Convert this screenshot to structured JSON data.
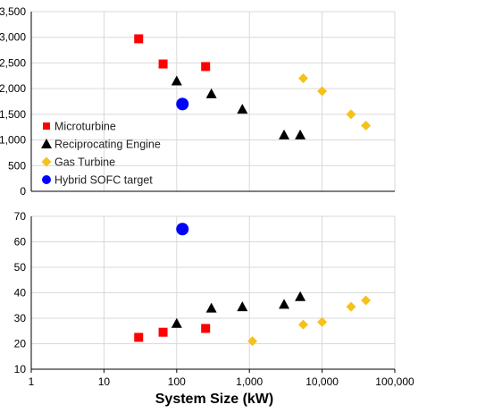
{
  "chart_data": [
    {
      "type": "scatter",
      "xscale": "log",
      "xlim": [
        1,
        100000
      ],
      "ylim": [
        0,
        3500
      ],
      "yticks": [
        "0",
        "500",
        "1,000",
        "1,500",
        "2,000",
        "2,500",
        "3,000",
        "3,500"
      ],
      "grid": true,
      "legend_position": "bottom-left",
      "series": [
        {
          "name": "Microturbine",
          "color": "#ff0000",
          "marker": "square",
          "points": [
            [
              30,
              2970
            ],
            [
              65,
              2480
            ],
            [
              250,
              2430
            ]
          ]
        },
        {
          "name": "Reciprocating Engine",
          "color": "#000000",
          "marker": "triangle",
          "points": [
            [
              100,
              2150
            ],
            [
              300,
              1900
            ],
            [
              800,
              1600
            ],
            [
              3000,
              1100
            ],
            [
              5000,
              1100
            ]
          ]
        },
        {
          "name": "Gas Turbine",
          "color": "#f5c21b",
          "marker": "diamond",
          "points": [
            [
              5500,
              2200
            ],
            [
              10000,
              1950
            ],
            [
              25000,
              1500
            ],
            [
              40000,
              1280
            ]
          ]
        },
        {
          "name": "Hybrid SOFC target",
          "color": "#0000ff",
          "marker": "circle",
          "points": [
            [
              120,
              1700
            ]
          ]
        }
      ]
    },
    {
      "type": "scatter",
      "xscale": "log",
      "xlim": [
        1,
        100000
      ],
      "ylim": [
        10,
        70
      ],
      "yticks": [
        "10",
        "20",
        "30",
        "40",
        "50",
        "60",
        "70"
      ],
      "xticks": [
        "1",
        "10",
        "100",
        "1,000",
        "10,000",
        "100,000"
      ],
      "xlabel": "System Size (kW)",
      "grid": true,
      "series": [
        {
          "name": "Microturbine",
          "color": "#ff0000",
          "marker": "square",
          "points": [
            [
              30,
              22.5
            ],
            [
              65,
              24.5
            ],
            [
              250,
              26
            ]
          ]
        },
        {
          "name": "Reciprocating Engine",
          "color": "#000000",
          "marker": "triangle",
          "points": [
            [
              100,
              28
            ],
            [
              300,
              34
            ],
            [
              800,
              34.5
            ],
            [
              3000,
              35.5
            ],
            [
              5000,
              38.5
            ]
          ]
        },
        {
          "name": "Gas Turbine",
          "color": "#f5c21b",
          "marker": "diamond",
          "points": [
            [
              1100,
              21
            ],
            [
              5500,
              27.5
            ],
            [
              10000,
              28.5
            ],
            [
              25000,
              34.5
            ],
            [
              40000,
              37
            ]
          ]
        },
        {
          "name": "Hybrid SOFC target",
          "color": "#0000ff",
          "marker": "circle",
          "points": [
            [
              120,
              65
            ]
          ]
        }
      ]
    }
  ]
}
